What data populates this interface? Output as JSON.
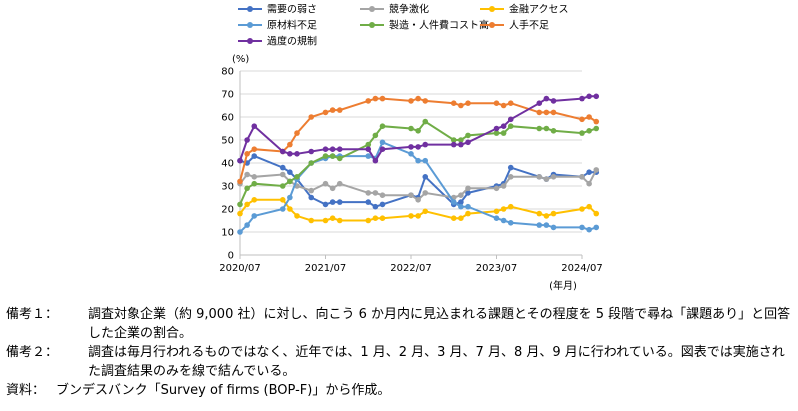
{
  "chart_data": {
    "type": "line",
    "unit_label": "(%)",
    "xlabel": "(年月)",
    "ylim": [
      0,
      80
    ],
    "yticks": [
      0,
      10,
      20,
      30,
      40,
      50,
      60,
      70,
      80
    ],
    "grid": true,
    "legend_placement": "top",
    "xtick_labels": [
      "2020/07",
      "2021/07",
      "2022/07",
      "2023/07",
      "2024/07"
    ],
    "series": [
      {
        "name": "需要の弱さ",
        "color": "#4472c4",
        "points": [
          [
            "2020/07",
            41
          ],
          [
            "2020/08",
            40
          ],
          [
            "2020/09",
            43
          ],
          [
            "2021/01",
            38
          ],
          [
            "2021/02",
            36
          ],
          [
            "2021/03",
            33
          ],
          [
            "2021/05",
            25
          ],
          [
            "2021/07",
            22
          ],
          [
            "2021/08",
            23
          ],
          [
            "2021/09",
            23
          ],
          [
            "2022/01",
            23
          ],
          [
            "2022/02",
            21
          ],
          [
            "2022/03",
            22
          ],
          [
            "2022/07",
            26
          ],
          [
            "2022/08",
            25
          ],
          [
            "2022/09",
            34
          ],
          [
            "2023/01",
            22
          ],
          [
            "2023/02",
            23
          ],
          [
            "2023/03",
            27
          ],
          [
            "2023/07",
            30
          ],
          [
            "2023/08",
            31
          ],
          [
            "2023/09",
            38
          ],
          [
            "2024/01",
            34
          ],
          [
            "2024/02",
            33
          ],
          [
            "2024/03",
            35
          ],
          [
            "2024/07",
            34
          ],
          [
            "2024/08",
            36
          ],
          [
            "2024/09",
            36
          ]
        ]
      },
      {
        "name": "競争激化",
        "color": "#a5a5a5",
        "points": [
          [
            "2020/07",
            31
          ],
          [
            "2020/08",
            35
          ],
          [
            "2020/09",
            34
          ],
          [
            "2021/01",
            35
          ],
          [
            "2021/02",
            32
          ],
          [
            "2021/03",
            30
          ],
          [
            "2021/05",
            28
          ],
          [
            "2021/07",
            31
          ],
          [
            "2021/08",
            29
          ],
          [
            "2021/09",
            31
          ],
          [
            "2022/01",
            27
          ],
          [
            "2022/02",
            27
          ],
          [
            "2022/03",
            26
          ],
          [
            "2022/07",
            26
          ],
          [
            "2022/08",
            24
          ],
          [
            "2022/09",
            27
          ],
          [
            "2023/01",
            25
          ],
          [
            "2023/02",
            26
          ],
          [
            "2023/03",
            29
          ],
          [
            "2023/07",
            29
          ],
          [
            "2023/08",
            30
          ],
          [
            "2023/09",
            34
          ],
          [
            "2024/01",
            34
          ],
          [
            "2024/02",
            33
          ],
          [
            "2024/03",
            34
          ],
          [
            "2024/07",
            34
          ],
          [
            "2024/08",
            31
          ],
          [
            "2024/09",
            37
          ]
        ]
      },
      {
        "name": "金融アクセス",
        "color": "#ffc000",
        "points": [
          [
            "2020/07",
            18
          ],
          [
            "2020/08",
            22
          ],
          [
            "2020/09",
            24
          ],
          [
            "2021/01",
            24
          ],
          [
            "2021/02",
            20
          ],
          [
            "2021/03",
            17
          ],
          [
            "2021/05",
            15
          ],
          [
            "2021/07",
            15
          ],
          [
            "2021/08",
            16
          ],
          [
            "2021/09",
            15
          ],
          [
            "2022/01",
            15
          ],
          [
            "2022/02",
            16
          ],
          [
            "2022/03",
            16
          ],
          [
            "2022/07",
            17
          ],
          [
            "2022/08",
            17
          ],
          [
            "2022/09",
            19
          ],
          [
            "2023/01",
            16
          ],
          [
            "2023/02",
            16
          ],
          [
            "2023/03",
            18
          ],
          [
            "2023/07",
            19
          ],
          [
            "2023/08",
            20
          ],
          [
            "2023/09",
            21
          ],
          [
            "2024/01",
            18
          ],
          [
            "2024/02",
            17
          ],
          [
            "2024/03",
            18
          ],
          [
            "2024/07",
            20
          ],
          [
            "2024/08",
            21
          ],
          [
            "2024/09",
            18
          ]
        ]
      },
      {
        "name": "原材料不足",
        "color": "#5b9bd5",
        "points": [
          [
            "2020/07",
            10
          ],
          [
            "2020/08",
            13
          ],
          [
            "2020/09",
            17
          ],
          [
            "2021/01",
            20
          ],
          [
            "2021/02",
            25
          ],
          [
            "2021/03",
            33
          ],
          [
            "2021/05",
            40
          ],
          [
            "2021/07",
            42
          ],
          [
            "2021/08",
            43
          ],
          [
            "2021/09",
            43
          ],
          [
            "2022/01",
            43
          ],
          [
            "2022/02",
            42
          ],
          [
            "2022/03",
            49
          ],
          [
            "2022/07",
            44
          ],
          [
            "2022/08",
            41
          ],
          [
            "2022/09",
            41
          ],
          [
            "2023/01",
            23
          ],
          [
            "2023/02",
            21
          ],
          [
            "2023/03",
            21
          ],
          [
            "2023/07",
            16
          ],
          [
            "2023/08",
            15
          ],
          [
            "2023/09",
            14
          ],
          [
            "2024/01",
            13
          ],
          [
            "2024/02",
            13
          ],
          [
            "2024/03",
            12
          ],
          [
            "2024/07",
            12
          ],
          [
            "2024/08",
            11
          ],
          [
            "2024/09",
            12
          ]
        ]
      },
      {
        "name": "製造・人件費コスト高",
        "color": "#70ad47",
        "points": [
          [
            "2020/07",
            22
          ],
          [
            "2020/08",
            29
          ],
          [
            "2020/09",
            31
          ],
          [
            "2021/01",
            30
          ],
          [
            "2021/02",
            32
          ],
          [
            "2021/03",
            34
          ],
          [
            "2021/05",
            40
          ],
          [
            "2021/07",
            43
          ],
          [
            "2021/08",
            43
          ],
          [
            "2021/09",
            42
          ],
          [
            "2022/01",
            48
          ],
          [
            "2022/02",
            52
          ],
          [
            "2022/03",
            56
          ],
          [
            "2022/07",
            55
          ],
          [
            "2022/08",
            54
          ],
          [
            "2022/09",
            58
          ],
          [
            "2023/01",
            50
          ],
          [
            "2023/02",
            50
          ],
          [
            "2023/03",
            52
          ],
          [
            "2023/07",
            53
          ],
          [
            "2023/08",
            53
          ],
          [
            "2023/09",
            56
          ],
          [
            "2024/01",
            55
          ],
          [
            "2024/02",
            55
          ],
          [
            "2024/03",
            54
          ],
          [
            "2024/07",
            53
          ],
          [
            "2024/08",
            54
          ],
          [
            "2024/09",
            55
          ]
        ]
      },
      {
        "name": "人手不足",
        "color": "#ed7d31",
        "points": [
          [
            "2020/07",
            32
          ],
          [
            "2020/08",
            44
          ],
          [
            "2020/09",
            46
          ],
          [
            "2021/01",
            45
          ],
          [
            "2021/02",
            48
          ],
          [
            "2021/03",
            53
          ],
          [
            "2021/05",
            60
          ],
          [
            "2021/07",
            62
          ],
          [
            "2021/08",
            63
          ],
          [
            "2021/09",
            63
          ],
          [
            "2022/01",
            67
          ],
          [
            "2022/02",
            68
          ],
          [
            "2022/03",
            68
          ],
          [
            "2022/07",
            67
          ],
          [
            "2022/08",
            68
          ],
          [
            "2022/09",
            67
          ],
          [
            "2023/01",
            66
          ],
          [
            "2023/02",
            65
          ],
          [
            "2023/03",
            66
          ],
          [
            "2023/07",
            66
          ],
          [
            "2023/08",
            65
          ],
          [
            "2023/09",
            66
          ],
          [
            "2024/01",
            62
          ],
          [
            "2024/02",
            62
          ],
          [
            "2024/03",
            62
          ],
          [
            "2024/07",
            59
          ],
          [
            "2024/08",
            60
          ],
          [
            "2024/09",
            58
          ]
        ]
      },
      {
        "name": "過度の規制",
        "color": "#7030a0",
        "points": [
          [
            "2020/07",
            41
          ],
          [
            "2020/08",
            50
          ],
          [
            "2020/09",
            56
          ],
          [
            "2021/01",
            45
          ],
          [
            "2021/02",
            44
          ],
          [
            "2021/03",
            44
          ],
          [
            "2021/05",
            45
          ],
          [
            "2021/07",
            46
          ],
          [
            "2021/08",
            46
          ],
          [
            "2021/09",
            46
          ],
          [
            "2022/01",
            46
          ],
          [
            "2022/02",
            41
          ],
          [
            "2022/03",
            46
          ],
          [
            "2022/07",
            47
          ],
          [
            "2022/08",
            47
          ],
          [
            "2022/09",
            48
          ],
          [
            "2023/01",
            48
          ],
          [
            "2023/02",
            48
          ],
          [
            "2023/03",
            49
          ],
          [
            "2023/07",
            55
          ],
          [
            "2023/08",
            56
          ],
          [
            "2023/09",
            59
          ],
          [
            "2024/01",
            66
          ],
          [
            "2024/02",
            68
          ],
          [
            "2024/03",
            67
          ],
          [
            "2024/07",
            68
          ],
          [
            "2024/08",
            69
          ],
          [
            "2024/09",
            69
          ]
        ]
      }
    ]
  },
  "notes": [
    {
      "label": "備考１：",
      "text": "調査対象企業（約 9,000 社）に対し、向こう 6 か月内に見込まれる課題とその程度を 5 段階で尋ね「課題あり」と回答した企業の割合。"
    },
    {
      "label": "備考２：",
      "text": "調査は毎月行われるものではなく、近年では、1 月、2 月、3 月、7 月、8 月、9 月に行われている。図表では実施された調査結果のみを線で結んでいる。"
    },
    {
      "label": "資料：",
      "text": "ブンデスバンク「Survey of firms (BOP-F)」から作成。"
    }
  ]
}
